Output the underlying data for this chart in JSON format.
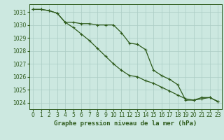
{
  "title": "Graphe pression niveau de la mer (hPa)",
  "bg_color": "#cce8e0",
  "grid_color": "#aaccC4",
  "line_color": "#2d5a1b",
  "spine_color": "#2d5a1b",
  "xlim": [
    -0.5,
    23.5
  ],
  "ylim": [
    1023.5,
    1031.6
  ],
  "yticks": [
    1024,
    1025,
    1026,
    1027,
    1028,
    1029,
    1030,
    1031
  ],
  "xticks": [
    0,
    1,
    2,
    3,
    4,
    5,
    6,
    7,
    8,
    9,
    10,
    11,
    12,
    13,
    14,
    15,
    16,
    17,
    18,
    19,
    20,
    21,
    22,
    23
  ],
  "line1_x": [
    0,
    1,
    2,
    3,
    4,
    5,
    6,
    7,
    8,
    9,
    10,
    11,
    12,
    13,
    14,
    15,
    16,
    17,
    18,
    19,
    20,
    21,
    22,
    23
  ],
  "line1_y": [
    1031.2,
    1031.2,
    1031.1,
    1030.9,
    1030.2,
    1030.2,
    1030.1,
    1030.1,
    1030.0,
    1030.0,
    1030.0,
    1029.4,
    1028.6,
    1028.5,
    1028.1,
    1026.5,
    1026.1,
    1025.8,
    1025.4,
    1024.2,
    1024.2,
    1024.3,
    1024.4,
    1024.1
  ],
  "line2_x": [
    0,
    1,
    2,
    3,
    4,
    5,
    6,
    7,
    8,
    9,
    10,
    11,
    12,
    13,
    14,
    15,
    16,
    17,
    18,
    19,
    20,
    21,
    22,
    23
  ],
  "line2_y": [
    1031.2,
    1031.2,
    1031.1,
    1030.9,
    1030.2,
    1029.8,
    1029.3,
    1028.8,
    1028.2,
    1027.6,
    1027.0,
    1026.5,
    1026.1,
    1026.0,
    1025.7,
    1025.5,
    1025.2,
    1024.9,
    1024.6,
    1024.3,
    1024.2,
    1024.4,
    1024.4,
    1024.1
  ],
  "tick_fontsize": 5.5,
  "xlabel_fontsize": 6.5,
  "marker_size": 3.0,
  "line_width": 0.9
}
